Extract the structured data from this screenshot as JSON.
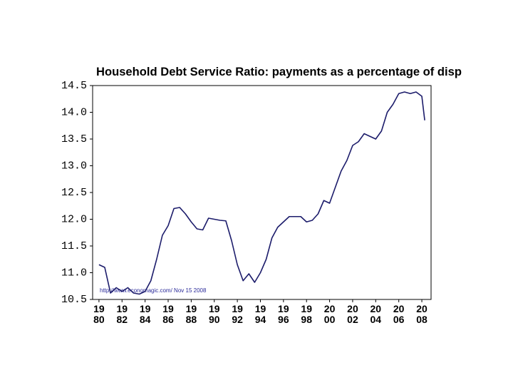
{
  "chart_data": {
    "type": "line",
    "title": "Household Debt Service Ratio: payments as a percentage of disp",
    "annotation": "http://www.economagic.com/   Nov 15 2008",
    "x": [
      1980,
      1980.5,
      1981,
      1981.5,
      1982,
      1982.5,
      1983,
      1983.5,
      1984,
      1984.5,
      1985,
      1985.5,
      1986,
      1986.5,
      1987,
      1987.5,
      1988,
      1988.5,
      1989,
      1989.5,
      1990,
      1990.5,
      1991,
      1991.5,
      1992,
      1992.5,
      1993,
      1993.5,
      1994,
      1994.5,
      1995,
      1995.5,
      1996,
      1996.5,
      1997,
      1997.5,
      1998,
      1998.5,
      1999,
      1999.5,
      2000,
      2000.5,
      2001,
      2001.5,
      2002,
      2002.5,
      2003,
      2003.5,
      2004,
      2004.5,
      2005,
      2005.5,
      2006,
      2006.5,
      2007,
      2007.5,
      2008,
      2008.25
    ],
    "series": [
      {
        "name": "Debt Service Ratio",
        "color": "#1c1c6b",
        "values": [
          11.15,
          11.1,
          10.62,
          10.72,
          10.65,
          10.72,
          10.62,
          10.6,
          10.65,
          10.85,
          11.25,
          11.7,
          11.88,
          12.2,
          12.22,
          12.1,
          11.95,
          11.82,
          11.8,
          12.02,
          12.0,
          11.98,
          11.97,
          11.6,
          11.15,
          10.85,
          10.98,
          10.82,
          11.0,
          11.25,
          11.65,
          11.85,
          11.95,
          12.05,
          12.05,
          12.05,
          11.95,
          11.98,
          12.1,
          12.35,
          12.3,
          12.6,
          12.9,
          13.1,
          13.38,
          13.45,
          13.6,
          13.55,
          13.5,
          13.65,
          14.0,
          14.15,
          14.35,
          14.38,
          14.35,
          14.38,
          14.3,
          13.85
        ]
      }
    ],
    "xlim": [
      1979.45,
      2008.8
    ],
    "xticks": [
      1980,
      1982,
      1984,
      1986,
      1988,
      1990,
      1992,
      1994,
      1996,
      1998,
      2000,
      2002,
      2004,
      2006,
      2008
    ],
    "ylim": [
      10.5,
      14.5
    ],
    "yticks": [
      10.5,
      {
        "value": 11,
        "label": "11.0"
      },
      11.5,
      {
        "value": 12,
        "label": "12.0"
      },
      12.5,
      {
        "value": 13,
        "label": "13.0"
      },
      13.5,
      {
        "value": 14,
        "label": "14.0"
      },
      14.5
    ],
    "grid": false
  }
}
